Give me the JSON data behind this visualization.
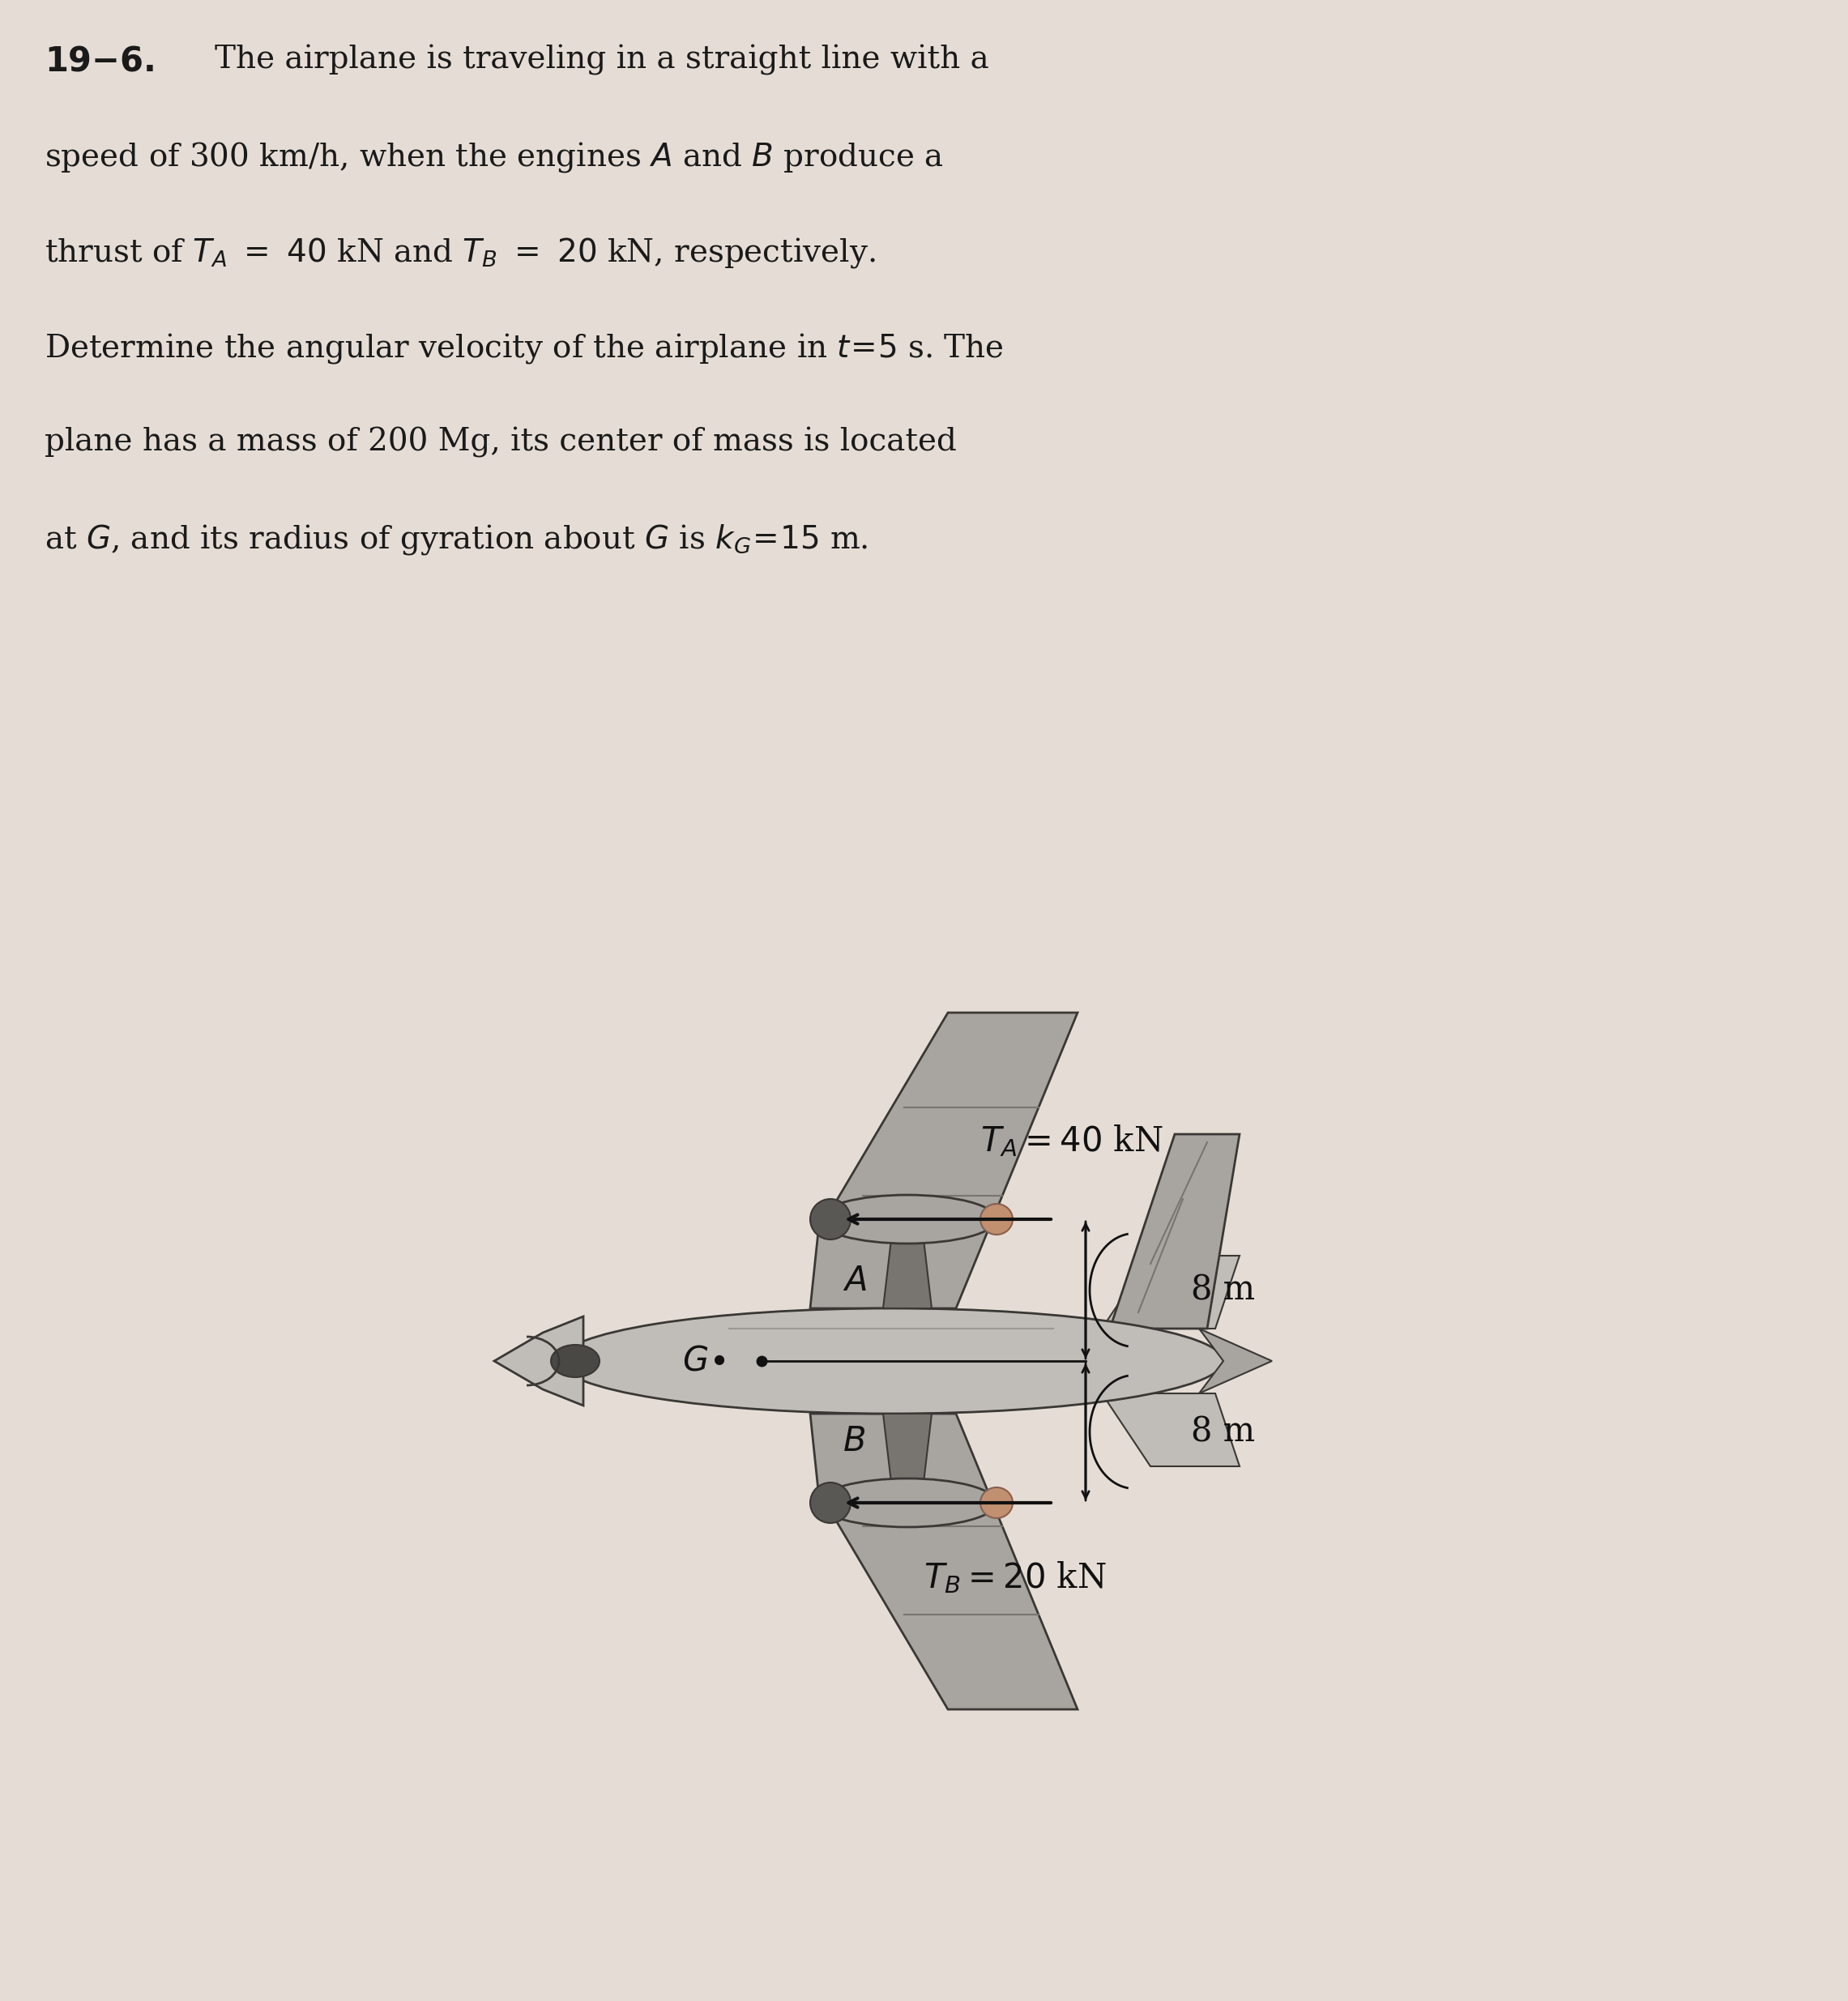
{
  "bg_color": "#e5ddd5",
  "text_color": "#1a1a1a",
  "arrow_color": "#111111",
  "font_size_text": 28,
  "label_TA": "$T_A = 40$ kN",
  "label_TB": "$T_B = 20$ kN",
  "label_8m_top": "8 m",
  "label_8m_bot": "8 m",
  "label_G": "$G$",
  "label_A": "$A$",
  "label_B": "$B$",
  "plane_gray_light": "#c0bcb8",
  "plane_gray_mid": "#a8a4a0",
  "plane_gray_dark": "#787470",
  "plane_outline": "#3a3835"
}
